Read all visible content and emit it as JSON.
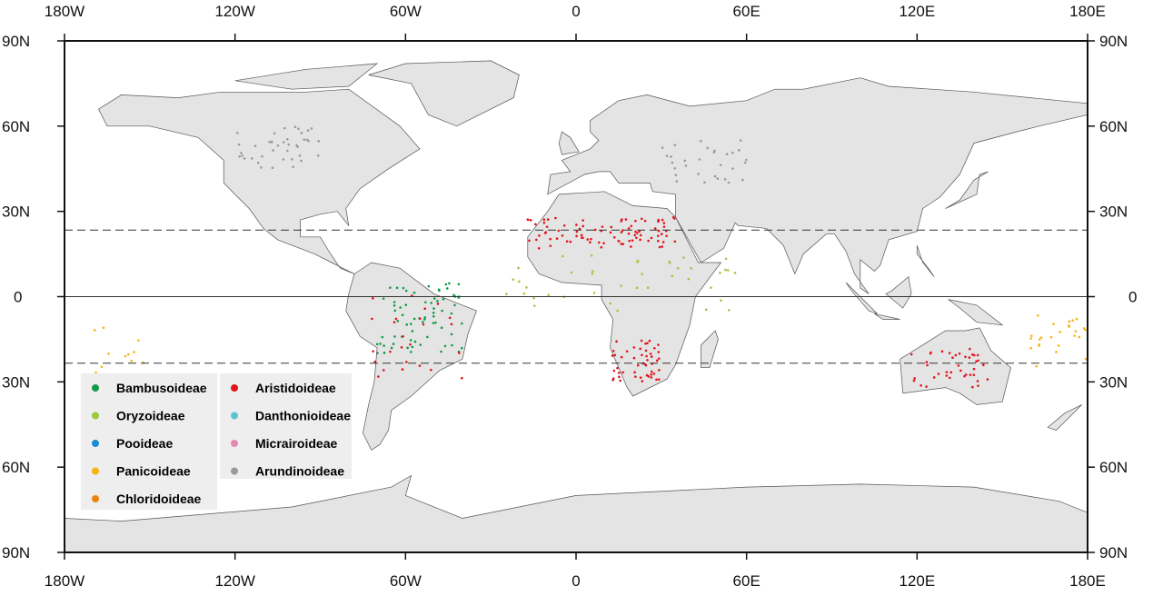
{
  "map": {
    "lon_ticks": [
      "180W",
      "120W",
      "60W",
      "0",
      "60E",
      "120E",
      "180E"
    ],
    "lat_ticks": [
      "90N",
      "60N",
      "30N",
      "0",
      "30N",
      "60N",
      "90N"
    ],
    "land_color": "#e4e4e4",
    "reference_lines": [
      "Tropic of Cancer (dashed)",
      "Equator (solid)",
      "Tropic of Capricorn (dashed)"
    ]
  },
  "legend": {
    "items": [
      {
        "label": "Bambusoideae",
        "color": "#129a47"
      },
      {
        "label": "Oryzoideae",
        "color": "#9ec83c"
      },
      {
        "label": "Pooideae",
        "color": "#1a8bd2"
      },
      {
        "label": "Panicoideae",
        "color": "#f5b40f"
      },
      {
        "label": "Chloridoideae",
        "color": "#ee8410"
      },
      {
        "label": "Aristidoideae",
        "color": "#e0141c"
      },
      {
        "label": "Danthonioideae",
        "color": "#5cc3d0"
      },
      {
        "label": "Micrairoideae",
        "color": "#e886b4"
      },
      {
        "label": "Arundinoideae",
        "color": "#9a9a9a"
      }
    ]
  }
}
